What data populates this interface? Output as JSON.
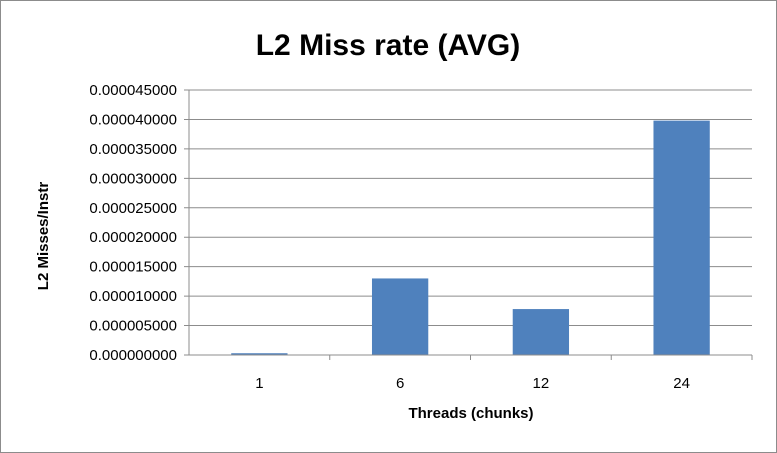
{
  "chart_data": {
    "type": "bar",
    "title": "L2 Miss rate (AVG)",
    "xlabel": "Threads (chunks)",
    "ylabel": "L2 Misses/Instr",
    "categories": [
      "1",
      "6",
      "12",
      "24"
    ],
    "values": [
      3e-07,
      1.3e-05,
      7.8e-06,
      3.98e-05
    ],
    "ylim": [
      0,
      4.5e-05
    ],
    "yticks": [
      "0.000000000",
      "0.000005000",
      "0.000010000",
      "0.000015000",
      "0.000020000",
      "0.000025000",
      "0.000030000",
      "0.000035000",
      "0.000040000",
      "0.000045000"
    ],
    "grid": true,
    "legend": "none",
    "bar_color": "#4f81bd"
  }
}
